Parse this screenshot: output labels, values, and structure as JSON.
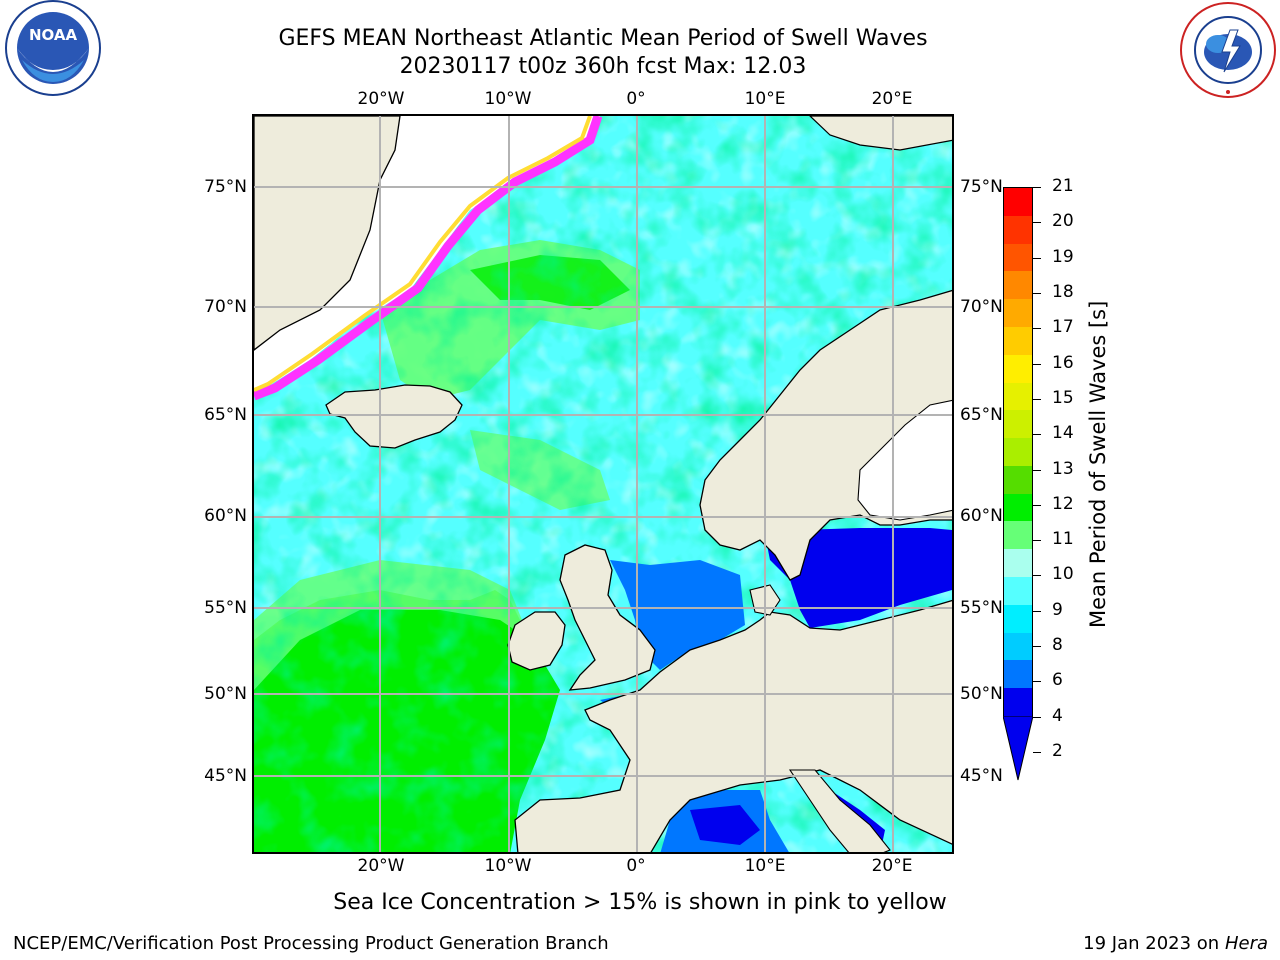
{
  "header": {
    "title_line1": "GEFS MEAN Northeast Atlantic Mean Period of Swell Waves",
    "title_line2": "20230117 t00z 360h fcst   Max: 12.03"
  },
  "logos": {
    "noaa": {
      "text": "NOAA",
      "ring_text": "NATIONAL OCEANIC AND ATMOSPHERIC ADMINISTRATION · U.S. DEPARTMENT OF COMMERCE"
    },
    "nws": {
      "ring_text": "NATIONAL WEATHER SERVICE"
    }
  },
  "map": {
    "lon_labels": [
      "20°W",
      "10°W",
      "0°",
      "10°E",
      "20°E"
    ],
    "lat_labels": [
      "75°N",
      "70°N",
      "65°N",
      "60°N",
      "55°N",
      "50°N",
      "45°N"
    ],
    "colors": {
      "land": "#eeecdc",
      "ice_free_white": "#ffffff",
      "grid": "#b3b3b3",
      "ice_edge": [
        "#ff33ff",
        "#ffaacc",
        "#ffdd33"
      ]
    }
  },
  "colorbar": {
    "title": "Mean Period of Swell Waves [s]",
    "ticks": [
      "21",
      "20",
      "19",
      "18",
      "17",
      "16",
      "15",
      "14",
      "13",
      "12",
      "11",
      "10",
      "9",
      "8",
      "6",
      "4",
      "2"
    ],
    "colors": [
      "#ff0000",
      "#ff3300",
      "#ff5500",
      "#ff8800",
      "#ffaa00",
      "#ffcc00",
      "#ffee00",
      "#e6f000",
      "#ccf000",
      "#aaee00",
      "#55dd00",
      "#00ee00",
      "#66ff77",
      "#aaffee",
      "#55ffff",
      "#00eeff",
      "#00ccff",
      "#0077ff",
      "#0000ee"
    ]
  },
  "caption": "Sea Ice Concentration > 15% is shown in pink to yellow",
  "footer": {
    "left": "NCEP/EMC/Verification Post Processing Product Generation Branch",
    "right_prefix": "19 Jan 2023 on ",
    "right_italic": "Hera"
  }
}
